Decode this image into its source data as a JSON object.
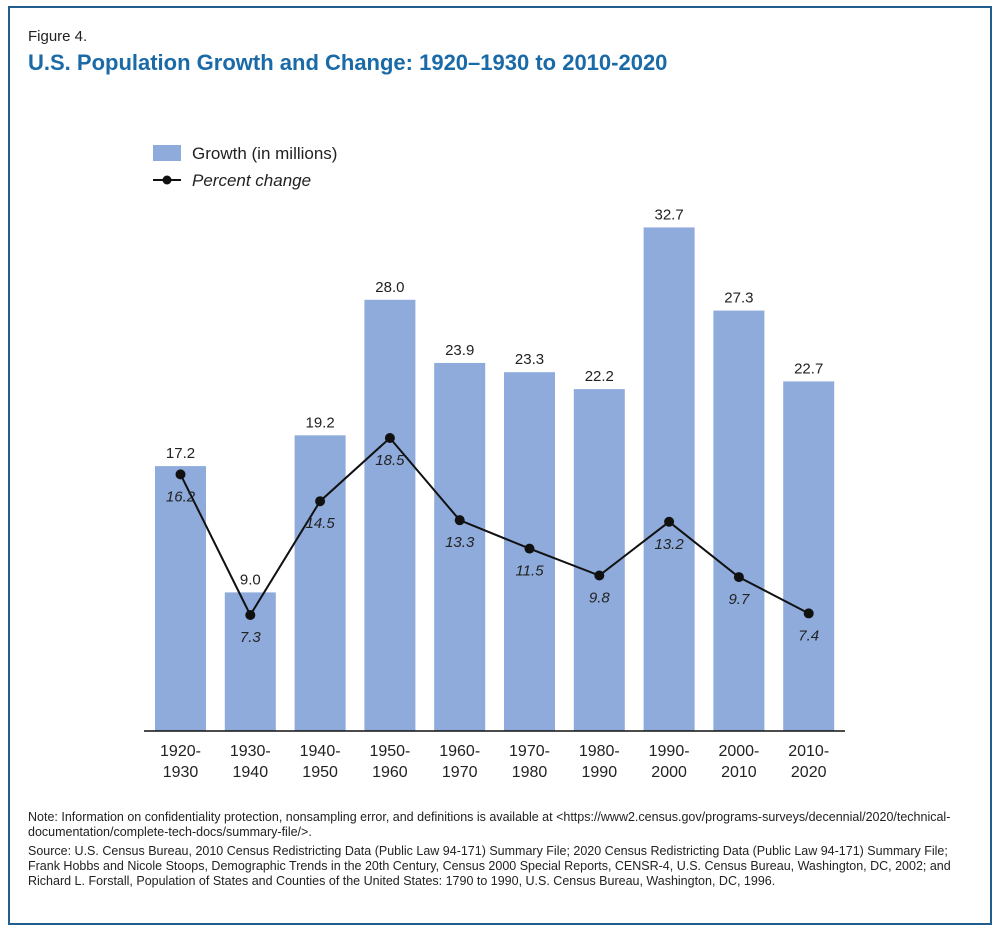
{
  "figure_label": "Figure 4.",
  "chart_data": {
    "type": "bar",
    "title": "U.S. Population Growth and Change: 1920–1930 to 2010-2020",
    "categories": [
      [
        "1920-",
        "1930"
      ],
      [
        "1930-",
        "1940"
      ],
      [
        "1940-",
        "1950"
      ],
      [
        "1950-",
        "1960"
      ],
      [
        "1960-",
        "1970"
      ],
      [
        "1970-",
        "1980"
      ],
      [
        "1980-",
        "1990"
      ],
      [
        "1990-",
        "2000"
      ],
      [
        "2000-",
        "2010"
      ],
      [
        "2010-",
        "2020"
      ]
    ],
    "series": [
      {
        "name": "Growth (in millions)",
        "type": "bar",
        "color": "#8eabdb",
        "values": [
          17.2,
          9.0,
          19.2,
          28.0,
          23.9,
          23.3,
          22.2,
          32.7,
          27.3,
          22.7
        ],
        "labels": [
          "17.2",
          "9.0",
          "19.2",
          "28.0",
          "23.9",
          "23.3",
          "22.2",
          "32.7",
          "27.3",
          "22.7"
        ]
      },
      {
        "name": "Percent change",
        "type": "line",
        "color": "#111111",
        "values": [
          16.2,
          7.3,
          14.5,
          18.5,
          13.3,
          11.5,
          9.8,
          13.2,
          9.7,
          7.4
        ],
        "labels": [
          "16.2",
          "7.3",
          "14.5",
          "18.5",
          "13.3",
          "11.5",
          "9.8",
          "13.2",
          "9.7",
          "7.4"
        ]
      }
    ],
    "legend": {
      "position": "top-left",
      "growth": "Growth (in millions)",
      "percent": "Percent change"
    },
    "ylim": [
      0,
      35
    ],
    "grid": false
  },
  "notes": {
    "note": "Note: Information on confidentiality protection, nonsampling error, and definitions is available at <https://www2.census.gov/programs-surveys/decennial/2020/technical-documentation/complete-tech-docs/summary-file/>.",
    "source": "Source: U.S. Census Bureau, 2010 Census Redistricting Data (Public Law 94-171) Summary File; 2020 Census Redistricting Data (Public Law 94-171) Summary File; Frank Hobbs and Nicole Stoops, Demographic Trends in the 20th Century, Census 2000 Special Reports, CENSR-4, U.S. Census Bureau, Washington, DC, 2002; and Richard L. Forstall, Population of States and Counties of the United States: 1790 to 1990, U.S. Census Bureau, Washington, DC, 1996."
  }
}
